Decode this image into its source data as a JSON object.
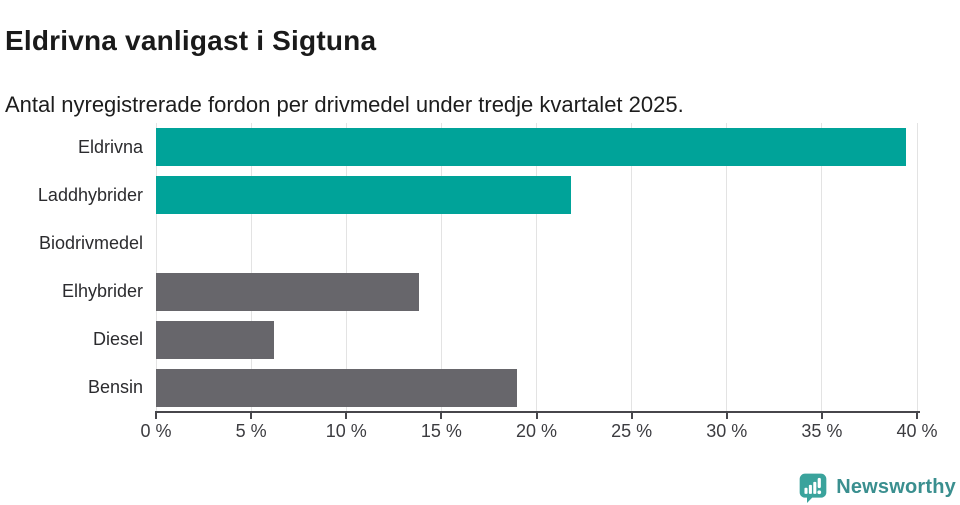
{
  "header": {
    "title": "Eldrivna vanligast i Sigtuna",
    "subtitle": "Antal nyregistrerade fordon per drivmedel under tredje kvartalet 2025."
  },
  "chart_data": {
    "type": "bar",
    "orientation": "horizontal",
    "title": "Eldrivna vanligast i Sigtuna",
    "subtitle": "Antal nyregistrerade fordon per drivmedel under tredje kvartalet 2025.",
    "categories": [
      "Eldrivna",
      "Laddhybrider",
      "Biodrivmedel",
      "Elhybrider",
      "Diesel",
      "Bensin"
    ],
    "values": [
      39.4,
      21.8,
      0,
      13.8,
      6.2,
      19.0
    ],
    "unit": "%",
    "bar_colors": [
      "#00A399",
      "#00A399",
      "#00A399",
      "#67666B",
      "#67666B",
      "#67666B"
    ],
    "xlim": [
      0,
      40
    ],
    "xticks": [
      0,
      5,
      10,
      15,
      20,
      25,
      30,
      35,
      40
    ],
    "xtick_label_suffix": " %",
    "grid": true,
    "legend": false
  },
  "colors": {
    "bar_teal": "#00A399",
    "bar_gray": "#67666B",
    "gridline": "#E3E3E3",
    "axis_line": "#47464B",
    "tick_label": "#3C3C40",
    "category_label": "#2B2B2E",
    "logo_icon_fill": "#3AA39C",
    "logo_text": "#3A8F8F"
  },
  "footer": {
    "brand_name": "Newsworthy"
  }
}
